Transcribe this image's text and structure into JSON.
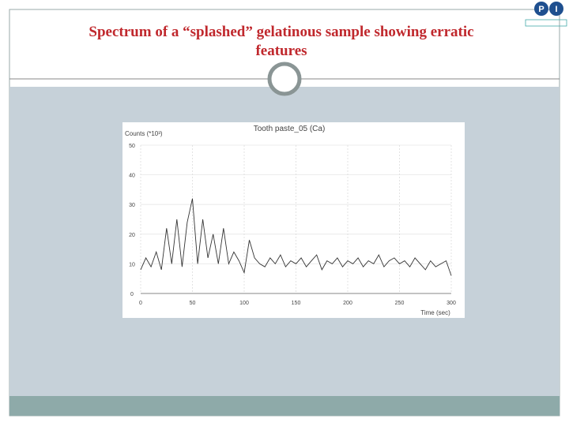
{
  "slide_title": "Spectrum of a “splashed” gelatinous sample showing erratic features",
  "logo": [
    "P",
    "I"
  ],
  "chart_data": {
    "type": "line",
    "title": "Tooth paste_05 (Ca)",
    "y_label": "Counts (*10³)",
    "x_label": "Time (sec)",
    "x": [
      0,
      5,
      10,
      15,
      20,
      25,
      30,
      35,
      40,
      45,
      50,
      55,
      60,
      65,
      70,
      75,
      80,
      85,
      90,
      95,
      100,
      105,
      110,
      115,
      120,
      125,
      130,
      135,
      140,
      145,
      150,
      155,
      160,
      165,
      170,
      175,
      180,
      185,
      190,
      195,
      200,
      205,
      210,
      215,
      220,
      225,
      230,
      235,
      240,
      245,
      250,
      255,
      260,
      265,
      270,
      275,
      280,
      285,
      290,
      295,
      300
    ],
    "values": [
      8,
      12,
      9,
      14,
      8,
      22,
      10,
      25,
      9,
      24,
      32,
      10,
      25,
      12,
      20,
      10,
      22,
      10,
      14,
      11,
      7,
      18,
      12,
      10,
      9,
      12,
      10,
      13,
      9,
      11,
      10,
      12,
      9,
      11,
      13,
      8,
      11,
      10,
      12,
      9,
      11,
      10,
      12,
      9,
      11,
      10,
      13,
      9,
      11,
      12,
      10,
      11,
      9,
      12,
      10,
      8,
      11,
      9,
      10,
      11,
      6
    ],
    "color": "#333333",
    "xlim": [
      0,
      300
    ],
    "xticks": [
      0,
      50,
      100,
      150,
      200,
      250,
      300
    ],
    "ylim": [
      0,
      50
    ],
    "yticks": [
      0,
      10,
      20,
      30,
      40,
      50
    ],
    "grid": true
  }
}
